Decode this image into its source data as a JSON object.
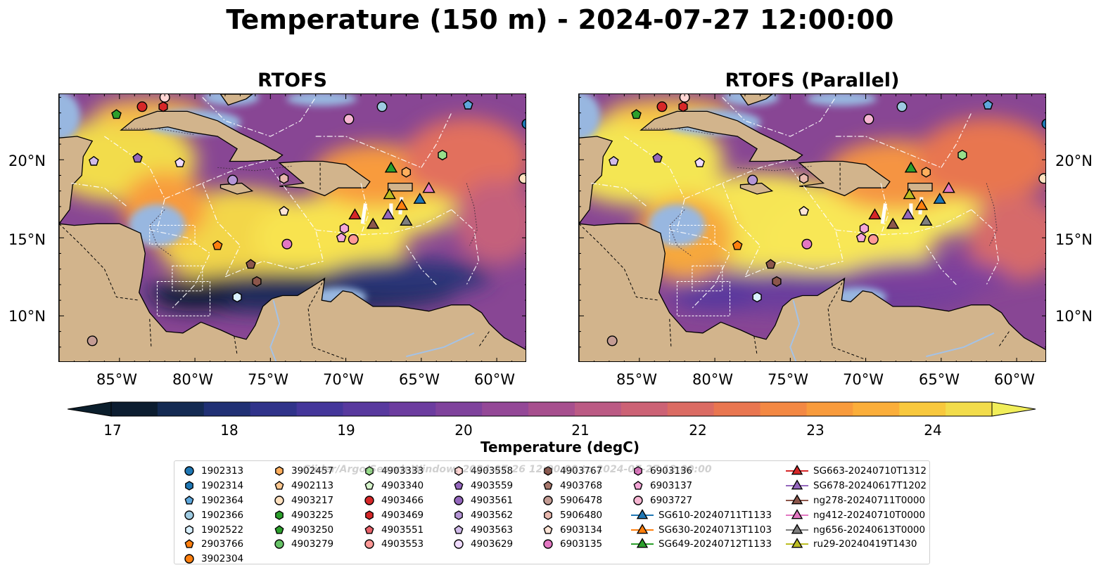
{
  "title": "Temperature (150 m) - 2024-07-27 12:00:00",
  "panels": [
    {
      "title": "RTOFS",
      "variant": "a"
    },
    {
      "title": "RTOFS (Parallel)",
      "variant": "b"
    }
  ],
  "x_ticks": [
    "85°W",
    "80°W",
    "75°W",
    "70°W",
    "65°W",
    "60°W"
  ],
  "y_ticks": [
    "20°N",
    "15°N",
    "10°N"
  ],
  "colorbar": {
    "label": "Temperature (degC)",
    "ticks": [
      "17",
      "18",
      "19",
      "20",
      "21",
      "22",
      "23",
      "24"
    ],
    "colors": [
      "#0c1d30",
      "#142a52",
      "#203074",
      "#30338a",
      "#44369a",
      "#58399e",
      "#6c3c9f",
      "#7f429c",
      "#944897",
      "#a74f8e",
      "#bb5a84",
      "#cc6275",
      "#db6b63",
      "#e97650",
      "#f38843",
      "#f89b3c",
      "#fbae3a",
      "#f8c83d",
      "#f2dc4b"
    ],
    "over_color": "#f1ee5a",
    "under_color": "#0b1e2c"
  },
  "watermark": "Glider/Argo/Search Window: 2024-07-26 12:00:00 to 2024-07-27 12:00:00",
  "map_colors": {
    "land": "#d2b48c",
    "shelf": "#98b7e0",
    "deep": "#0b1e2c"
  },
  "observations": [
    {
      "id": "1902313",
      "marker": "circle",
      "color": "#1f77b4",
      "lon": -58.0,
      "lat": 22.3
    },
    {
      "id": "1902314",
      "marker": "hexagon",
      "color": "#1f77b4",
      "lon": -58.2,
      "lat": 23.2
    },
    {
      "id": "1902364",
      "marker": "pentagon",
      "color": "#5ea7dc",
      "lon": -61.9,
      "lat": 23.5
    },
    {
      "id": "1902366",
      "marker": "circle",
      "color": "#9ecae1",
      "lon": -67.6,
      "lat": 23.4
    },
    {
      "id": "1902522",
      "marker": "hexagon",
      "color": "#d9f0ff",
      "lon": -77.2,
      "lat": 11.2
    },
    {
      "id": "2903766",
      "marker": "pentagon",
      "color": "#ff7f0e",
      "lon": -78.5,
      "lat": 14.5
    },
    {
      "id": "3902304",
      "marker": "circle",
      "color": "#ff7f0e",
      "lon": -88.0,
      "lat": 13.0
    },
    {
      "id": "3902457",
      "marker": "hexagon",
      "color": "#ffae5c",
      "lon": -66.5,
      "lat": 18.9
    },
    {
      "id": "4902113",
      "marker": "pentagon",
      "color": "#ffc890",
      "lon": -66.0,
      "lat": 19.2
    },
    {
      "id": "4903217",
      "marker": "circle",
      "color": "#ffe1c0",
      "lon": -58.2,
      "lat": 18.8
    },
    {
      "id": "4903225",
      "marker": "hexagon",
      "color": "#2ca02c",
      "lon": -88.0,
      "lat": 24.5
    },
    {
      "id": "4903250",
      "marker": "pentagon",
      "color": "#2ca02c",
      "lon": -85.2,
      "lat": 22.9
    },
    {
      "id": "4903279",
      "marker": "circle",
      "color": "#66c266",
      "lon": -87.5,
      "lat": 21.5
    },
    {
      "id": "4903333",
      "marker": "hexagon",
      "color": "#98df8a",
      "lon": -63.6,
      "lat": 20.3
    },
    {
      "id": "4903340",
      "marker": "pentagon",
      "color": "#d7f5cc",
      "lon": -88.2,
      "lat": 20.4
    },
    {
      "id": "4903466",
      "marker": "circle",
      "color": "#d62728",
      "lon": -83.5,
      "lat": 23.4
    },
    {
      "id": "4903469",
      "marker": "hexagon",
      "color": "#d62728",
      "lon": -82.1,
      "lat": 23.4
    },
    {
      "id": "4903551",
      "marker": "pentagon",
      "color": "#e8626a",
      "lon": -88.1,
      "lat": 17.0
    },
    {
      "id": "4903553",
      "marker": "circle",
      "color": "#ff9896",
      "lon": -69.5,
      "lat": 14.9
    },
    {
      "id": "4903558",
      "marker": "hexagon",
      "color": "#ffd5d3",
      "lon": -88.0,
      "lat": 16.0
    },
    {
      "id": "4903559",
      "marker": "pentagon",
      "color": "#9467bd",
      "lon": -83.8,
      "lat": 20.1
    },
    {
      "id": "4903561",
      "marker": "circle",
      "color": "#9467bd",
      "lon": -77.5,
      "lat": 18.7
    },
    {
      "id": "4903562",
      "marker": "hexagon",
      "color": "#b595d6",
      "lon": -88.3,
      "lat": 18.6
    },
    {
      "id": "4903563",
      "marker": "pentagon",
      "color": "#d1bbea",
      "lon": -86.7,
      "lat": 19.9
    },
    {
      "id": "4903629",
      "marker": "circle",
      "color": "#f0dbff",
      "lon": -88.2,
      "lat": 12.0
    },
    {
      "id": "4903767",
      "marker": "hexagon",
      "color": "#8c564b",
      "lon": -75.9,
      "lat": 12.2
    },
    {
      "id": "4903768",
      "marker": "pentagon",
      "color": "#a8786d",
      "lon": -76.3,
      "lat": 13.3
    },
    {
      "id": "5906478",
      "marker": "circle",
      "color": "#c49c94",
      "lon": -86.8,
      "lat": 8.4
    },
    {
      "id": "5906480",
      "marker": "hexagon",
      "color": "#e8b8ae",
      "lon": -74.1,
      "lat": 18.8
    },
    {
      "id": "6903134",
      "marker": "pentagon",
      "color": "#ffe4d6",
      "lon": -74.1,
      "lat": 16.7
    },
    {
      "id": "6903135",
      "marker": "circle",
      "color": "#e377c2",
      "lon": -88.2,
      "lat": 9.9
    },
    {
      "id": "6903136",
      "marker": "hexagon",
      "color": "#e377c2",
      "lon": -70.1,
      "lat": 15.6
    },
    {
      "id": "6903137",
      "marker": "pentagon",
      "color": "#f4a6d7",
      "lon": -70.3,
      "lat": 15.0
    },
    {
      "id": "6903727",
      "marker": "circle",
      "color": "#f7b6d2",
      "lon": -69.8,
      "lat": 22.6
    },
    {
      "id": "SG610-20240711T1133",
      "marker": "triangle",
      "color": "#1f77b4",
      "lon": -65.1,
      "lat": 17.5
    },
    {
      "id": "SG630-20240713T1103",
      "marker": "triangle",
      "color": "#ff7f0e",
      "lon": -66.3,
      "lat": 17.1
    },
    {
      "id": "SG649-20240712T1133",
      "marker": "triangle",
      "color": "#2ca02c",
      "lon": -67.0,
      "lat": 19.5
    },
    {
      "id": "SG663-20240710T1312",
      "marker": "triangle",
      "color": "#d62728",
      "lon": -69.4,
      "lat": 16.5
    },
    {
      "id": "SG678-20240617T1202",
      "marker": "triangle",
      "color": "#9467bd",
      "lon": -67.2,
      "lat": 16.5
    },
    {
      "id": "ng278-20240711T0000",
      "marker": "triangle",
      "color": "#8c564b",
      "lon": -68.2,
      "lat": 15.9
    },
    {
      "id": "ng412-20240710T0000",
      "marker": "triangle",
      "color": "#e377c2",
      "lon": -64.5,
      "lat": 18.2
    },
    {
      "id": "ng656-20240613T0000",
      "marker": "triangle",
      "color": "#7f7f7f",
      "lon": -66.0,
      "lat": 16.1
    },
    {
      "id": "ru29-20240419T1430",
      "marker": "triangle",
      "color": "#bcbd22",
      "lon": -67.1,
      "lat": 17.8
    }
  ],
  "markers_in_view": [
    {
      "marker": "circle",
      "color": "#1f77b4",
      "lon": -58.0,
      "lat": 22.3
    },
    {
      "marker": "pentagon",
      "color": "#5ea7dc",
      "lon": -61.9,
      "lat": 23.5
    },
    {
      "marker": "circle",
      "color": "#9ecae1",
      "lon": -67.6,
      "lat": 23.4
    },
    {
      "marker": "hexagon",
      "color": "#d9f0ff",
      "lon": -77.2,
      "lat": 11.2
    },
    {
      "marker": "pentagon",
      "color": "#ff7f0e",
      "lon": -78.5,
      "lat": 14.5
    },
    {
      "marker": "hexagon",
      "color": "#ffae5c",
      "lon": -66.0,
      "lat": 19.2
    },
    {
      "marker": "circle",
      "color": "#ffe1c0",
      "lon": -58.2,
      "lat": 18.8
    },
    {
      "marker": "pentagon",
      "color": "#2ca02c",
      "lon": -85.2,
      "lat": 22.9
    },
    {
      "marker": "hexagon",
      "color": "#98df8a",
      "lon": -63.6,
      "lat": 20.3
    },
    {
      "marker": "circle",
      "color": "#d62728",
      "lon": -83.5,
      "lat": 23.4
    },
    {
      "marker": "hexagon",
      "color": "#d62728",
      "lon": -82.1,
      "lat": 23.4
    },
    {
      "marker": "circle",
      "color": "#ff9896",
      "lon": -69.5,
      "lat": 14.9
    },
    {
      "marker": "pentagon",
      "color": "#9467bd",
      "lon": -83.8,
      "lat": 20.1
    },
    {
      "marker": "circle",
      "color": "#b595d6",
      "lon": -77.5,
      "lat": 18.7
    },
    {
      "marker": "pentagon",
      "color": "#d1bbea",
      "lon": -86.7,
      "lat": 19.9
    },
    {
      "marker": "pentagon",
      "color": "#f0dbff",
      "lon": -81.0,
      "lat": 19.8
    },
    {
      "marker": "hexagon",
      "color": "#8c564b",
      "lon": -75.9,
      "lat": 12.2
    },
    {
      "marker": "pentagon",
      "color": "#8c564b",
      "lon": -76.3,
      "lat": 13.3
    },
    {
      "marker": "circle",
      "color": "#c49c94",
      "lon": -86.8,
      "lat": 8.4
    },
    {
      "marker": "hexagon",
      "color": "#e8b8ae",
      "lon": -74.1,
      "lat": 18.8
    },
    {
      "marker": "pentagon",
      "color": "#ffe4d6",
      "lon": -74.1,
      "lat": 16.7
    },
    {
      "marker": "circle",
      "color": "#e377c2",
      "lon": -73.9,
      "lat": 14.6
    },
    {
      "marker": "hexagon",
      "color": "#f4a6d7",
      "lon": -70.1,
      "lat": 15.6
    },
    {
      "marker": "pentagon",
      "color": "#f4a6d7",
      "lon": -70.3,
      "lat": 15.0
    },
    {
      "marker": "circle",
      "color": "#f7b6d2",
      "lon": -69.8,
      "lat": 22.6
    },
    {
      "marker": "circle",
      "color": "#ffd5d3",
      "lon": -82.0,
      "lat": 24.0
    },
    {
      "marker": "triangle",
      "color": "#1f77b4",
      "lon": -65.1,
      "lat": 17.5
    },
    {
      "marker": "triangle",
      "color": "#ff7f0e",
      "lon": -66.3,
      "lat": 17.1
    },
    {
      "marker": "triangle",
      "color": "#2ca02c",
      "lon": -67.0,
      "lat": 19.5
    },
    {
      "marker": "triangle",
      "color": "#d62728",
      "lon": -69.4,
      "lat": 16.5
    },
    {
      "marker": "triangle",
      "color": "#9467bd",
      "lon": -67.2,
      "lat": 16.5
    },
    {
      "marker": "triangle",
      "color": "#8c564b",
      "lon": -68.2,
      "lat": 15.9
    },
    {
      "marker": "triangle",
      "color": "#e377c2",
      "lon": -64.5,
      "lat": 18.2
    },
    {
      "marker": "triangle",
      "color": "#7f7f7f",
      "lon": -66.0,
      "lat": 16.1
    },
    {
      "marker": "triangle",
      "color": "#bcbd22",
      "lon": -67.1,
      "lat": 17.8
    }
  ]
}
